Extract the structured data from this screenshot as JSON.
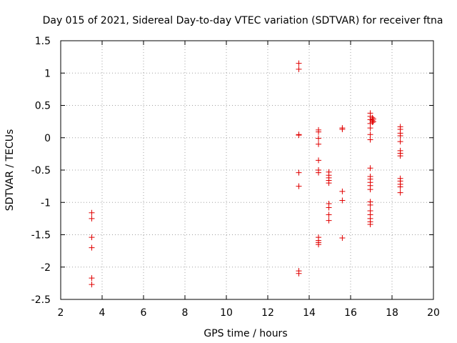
{
  "chart_data": {
    "type": "scatter",
    "title": "Day 015 of 2021, Sidereal Day-to-day VTEC variation (SDTVAR) for receiver ftna",
    "xlabel": "GPS time / hours",
    "ylabel": "SDTVAR / TECUs",
    "xlim": [
      2,
      20
    ],
    "ylim": [
      -2.5,
      1.5
    ],
    "xticks": [
      2,
      4,
      6,
      8,
      10,
      12,
      14,
      16,
      18,
      20
    ],
    "yticks": [
      -2.5,
      -2,
      -1.5,
      -1,
      -0.5,
      0,
      0.5,
      1,
      1.5
    ],
    "grid": true,
    "marker": "+",
    "series_color": "#e00000",
    "points": [
      [
        3.5,
        -1.16
      ],
      [
        3.5,
        -1.25
      ],
      [
        3.5,
        -1.54
      ],
      [
        3.5,
        -1.7
      ],
      [
        3.5,
        -2.17
      ],
      [
        3.5,
        -2.27
      ],
      [
        13.5,
        1.15
      ],
      [
        13.5,
        1.06
      ],
      [
        13.5,
        0.05
      ],
      [
        13.5,
        0.04
      ],
      [
        13.5,
        -0.54
      ],
      [
        13.5,
        -0.75
      ],
      [
        13.5,
        -2.06
      ],
      [
        13.5,
        -2.1
      ],
      [
        14.45,
        0.12
      ],
      [
        14.45,
        0.09
      ],
      [
        14.45,
        -0.01
      ],
      [
        14.45,
        -0.1
      ],
      [
        14.45,
        -0.35
      ],
      [
        14.45,
        -0.5
      ],
      [
        14.45,
        -0.54
      ],
      [
        14.45,
        -1.54
      ],
      [
        14.45,
        -1.59
      ],
      [
        14.45,
        -1.62
      ],
      [
        14.45,
        -1.65
      ],
      [
        14.95,
        -0.53
      ],
      [
        14.95,
        -0.58
      ],
      [
        14.95,
        -0.62
      ],
      [
        14.95,
        -0.66
      ],
      [
        14.95,
        -0.7
      ],
      [
        14.95,
        -1.02
      ],
      [
        14.95,
        -1.08
      ],
      [
        14.95,
        -1.19
      ],
      [
        14.95,
        -1.28
      ],
      [
        15.6,
        0.15
      ],
      [
        15.6,
        0.13
      ],
      [
        15.6,
        -0.83
      ],
      [
        15.6,
        -0.97
      ],
      [
        15.6,
        -1.55
      ],
      [
        16.95,
        0.38
      ],
      [
        16.95,
        0.33
      ],
      [
        16.95,
        0.28
      ],
      [
        16.95,
        0.22
      ],
      [
        16.95,
        0.15
      ],
      [
        16.95,
        0.05
      ],
      [
        16.95,
        -0.03
      ],
      [
        16.95,
        -0.47
      ],
      [
        16.95,
        -0.6
      ],
      [
        16.95,
        -0.64
      ],
      [
        16.95,
        -0.69
      ],
      [
        16.95,
        -0.74
      ],
      [
        16.95,
        -0.8
      ],
      [
        16.95,
        -0.99
      ],
      [
        16.95,
        -1.04
      ],
      [
        16.95,
        -1.13
      ],
      [
        16.95,
        -1.19
      ],
      [
        16.95,
        -1.25
      ],
      [
        16.95,
        -1.3
      ],
      [
        16.95,
        -1.34
      ],
      [
        17.05,
        0.31
      ],
      [
        17.05,
        0.27
      ],
      [
        17.05,
        0.24
      ],
      [
        17.1,
        0.29
      ],
      [
        17.1,
        0.25
      ],
      [
        18.4,
        0.17
      ],
      [
        18.4,
        0.13
      ],
      [
        18.4,
        0.07
      ],
      [
        18.4,
        0.03
      ],
      [
        18.4,
        -0.06
      ],
      [
        18.4,
        -0.2
      ],
      [
        18.4,
        -0.24
      ],
      [
        18.4,
        -0.28
      ],
      [
        18.4,
        -0.63
      ],
      [
        18.4,
        -0.67
      ],
      [
        18.4,
        -0.72
      ],
      [
        18.4,
        -0.76
      ],
      [
        18.4,
        -0.85
      ]
    ]
  }
}
